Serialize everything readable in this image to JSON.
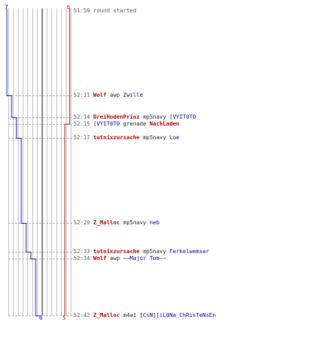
{
  "scores": {
    "top_left": "7",
    "top_right": "6",
    "bottom_left": "0",
    "bottom_right": "5"
  },
  "colors": {
    "blue_team": "#0000cc",
    "red_team": "#cc0000",
    "grid": "#bbbbbb",
    "mid_line": "#555555"
  },
  "events": [
    {
      "time": "51:59",
      "message": "round started"
    },
    {
      "time": "52:11",
      "killer": "Wolf",
      "killer_team": "red",
      "weapon": "awp",
      "victim": "Zwille",
      "victim_team": "blue"
    },
    {
      "time": "52:14",
      "killer": "DreiHodenPrinz",
      "killer_team": "red",
      "weapon": "mp5navy",
      "victim": "[VYIT0T0",
      "victim_team": "blue"
    },
    {
      "time": "52:15",
      "killer": "[VYIT0T0",
      "killer_team": "blue",
      "weapon": "grenade",
      "victim": "NachLaden",
      "victim_team": "red"
    },
    {
      "time": "52:17",
      "killer": "tutnixzursache",
      "killer_team": "red",
      "weapon": "mp5navy",
      "victim": "Loe",
      "victim_team": "blue"
    },
    {
      "time": "52:29",
      "killer": "Z_Malloc",
      "killer_team": "red",
      "weapon": "mp5navy",
      "victim": "neb",
      "victim_team": "blue"
    },
    {
      "time": "52:33",
      "killer": "tutnixzursache",
      "killer_team": "red",
      "weapon": "mp5navy",
      "victim": "Ferkelwemser",
      "victim_team": "blue"
    },
    {
      "time": "52:34",
      "killer": "Wolf",
      "killer_team": "red",
      "weapon": "awp",
      "victim": "~~Major Tom~~",
      "victim_team": "blue"
    },
    {
      "time": "52:42",
      "killer": "Z_Malloc",
      "killer_team": "red",
      "weapon": "m4a1",
      "victim": "[CsN][iL0Na_ChRisTeNsEn",
      "victim_team": "blue"
    }
  ]
}
